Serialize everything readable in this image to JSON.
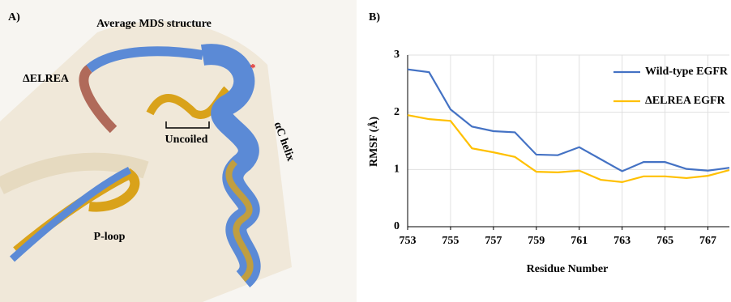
{
  "panel_a": {
    "panel_label": "A)",
    "title": "Average MDS structure",
    "labels": [
      "ΔELREA",
      "Uncoiled",
      "P-loop",
      "αC helix",
      "*"
    ]
  },
  "chart_data": {
    "type": "line",
    "panel_label": "B)",
    "x_label": "Residue Number",
    "y_label": "RMSF (Å)",
    "x": [
      753,
      754,
      755,
      756,
      757,
      758,
      759,
      760,
      761,
      762,
      763,
      764,
      765,
      766,
      767,
      768
    ],
    "series": [
      {
        "name": "Wild-type EGFR",
        "color": "#4472c4",
        "values": [
          2.75,
          2.7,
          2.05,
          1.75,
          1.67,
          1.65,
          1.26,
          1.25,
          1.39,
          1.18,
          0.97,
          1.13,
          1.13,
          1.01,
          0.98,
          1.03
        ]
      },
      {
        "name": "ΔELREA EGFR",
        "color": "#ffc000",
        "values": [
          1.95,
          1.88,
          1.85,
          1.37,
          1.3,
          1.22,
          0.96,
          0.95,
          0.98,
          0.82,
          0.78,
          0.88,
          0.88,
          0.85,
          0.89,
          0.99
        ]
      }
    ],
    "xlim": [
      753,
      768
    ],
    "xticks": [
      753,
      755,
      757,
      759,
      761,
      763,
      765,
      767
    ],
    "ylim": [
      0,
      3
    ],
    "yticks": [
      0,
      1,
      2,
      3
    ],
    "grid": true,
    "legend": "upper right"
  }
}
